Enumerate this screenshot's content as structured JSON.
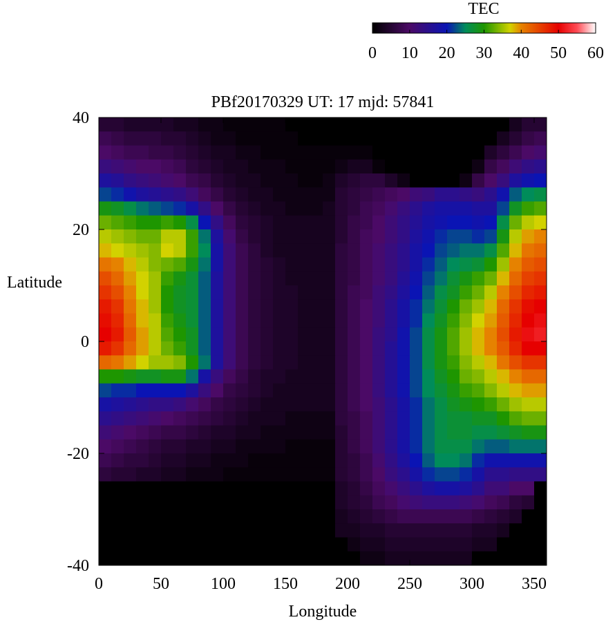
{
  "chart_data": {
    "type": "heatmap",
    "title": "PBf20170329  UT: 17  mjd: 57841",
    "xlabel": "Longitude",
    "ylabel": "Latitude",
    "xlim": [
      0,
      360
    ],
    "ylim": [
      -40,
      40
    ],
    "x_ticks": [
      "0",
      "50",
      "100",
      "150",
      "200",
      "250",
      "300",
      "350"
    ],
    "y_ticks": [
      "40",
      "20",
      "0",
      "-20",
      "-40"
    ],
    "colorbar": {
      "label": "TEC",
      "range": [
        0,
        60
      ],
      "ticks": [
        "0",
        "10",
        "20",
        "30",
        "40",
        "50",
        "60"
      ],
      "stops": [
        {
          "v": 0,
          "color": "#000000"
        },
        {
          "v": 10,
          "color": "#4b0a66"
        },
        {
          "v": 20,
          "color": "#0a14b4"
        },
        {
          "v": 25,
          "color": "#008c5a"
        },
        {
          "v": 30,
          "color": "#1e9600"
        },
        {
          "v": 37,
          "color": "#d2d200"
        },
        {
          "v": 40,
          "color": "#e68200"
        },
        {
          "v": 50,
          "color": "#e60000"
        },
        {
          "v": 55,
          "color": "#ff4b55"
        },
        {
          "v": 60,
          "color": "#ffffff"
        }
      ]
    },
    "grid_resolution": {
      "lon_step": 10,
      "lat_step": 2.5
    },
    "sampled_values": {
      "lon": [
        5,
        15,
        25,
        35,
        45,
        55,
        65,
        75,
        85,
        95,
        105,
        115,
        125,
        135,
        145,
        155,
        165,
        175,
        185,
        195,
        205,
        215,
        225,
        235,
        245,
        255,
        265,
        275,
        285,
        295,
        305,
        315,
        325,
        335,
        345,
        355
      ],
      "lat": [
        38.75,
        36.25,
        33.75,
        31.25,
        28.75,
        26.25,
        23.75,
        21.25,
        18.75,
        16.25,
        13.75,
        11.25,
        8.75,
        6.25,
        3.75,
        1.25,
        -1.25,
        -3.75,
        -6.25,
        -8.75,
        -11.25,
        -13.75,
        -16.25,
        -18.75,
        -21.25,
        -23.75,
        -26.25,
        -28.75,
        -31.25,
        -33.75,
        -36.25,
        -38.75
      ],
      "tec": [
        [
          5,
          5,
          4,
          4,
          4,
          4,
          3,
          3,
          2,
          2,
          1,
          1,
          1,
          1,
          1,
          0,
          0,
          0,
          0,
          0,
          0,
          0,
          0,
          0,
          0,
          0,
          0,
          0,
          0,
          0,
          0,
          0,
          0,
          3,
          5,
          5
        ],
        [
          8,
          7,
          6,
          6,
          6,
          5,
          5,
          4,
          3,
          2,
          2,
          1,
          1,
          1,
          1,
          1,
          0,
          0,
          0,
          0,
          0,
          0,
          0,
          0,
          0,
          0,
          0,
          0,
          0,
          0,
          0,
          0,
          3,
          5,
          7,
          8
        ],
        [
          10,
          9,
          8,
          8,
          7,
          7,
          6,
          5,
          4,
          3,
          3,
          2,
          2,
          1,
          1,
          1,
          1,
          1,
          1,
          1,
          1,
          1,
          0,
          0,
          0,
          0,
          0,
          0,
          0,
          0,
          0,
          4,
          6,
          8,
          10,
          11
        ],
        [
          13,
          12,
          11,
          10,
          10,
          9,
          8,
          6,
          5,
          4,
          3,
          3,
          2,
          2,
          2,
          1,
          1,
          1,
          1,
          2,
          3,
          3,
          1,
          0,
          0,
          0,
          0,
          0,
          0,
          0,
          2,
          7,
          9,
          12,
          14,
          15
        ],
        [
          17,
          16,
          14,
          13,
          12,
          11,
          10,
          8,
          7,
          5,
          4,
          3,
          3,
          2,
          2,
          2,
          1,
          1,
          2,
          4,
          5,
          6,
          6,
          4,
          2,
          0,
          0,
          0,
          0,
          2,
          7,
          10,
          13,
          17,
          19,
          20
        ],
        [
          22,
          21,
          19,
          17,
          16,
          15,
          14,
          12,
          9,
          7,
          5,
          4,
          3,
          3,
          2,
          2,
          2,
          2,
          2,
          5,
          6,
          7,
          8,
          9,
          10,
          12,
          13,
          15,
          15,
          14,
          13,
          15,
          19,
          23,
          25,
          26
        ],
        [
          29,
          28,
          26,
          24,
          23,
          22,
          21,
          18,
          14,
          10,
          7,
          5,
          4,
          3,
          3,
          2,
          2,
          2,
          3,
          5,
          6,
          8,
          9,
          11,
          13,
          15,
          17,
          18,
          18,
          18,
          17,
          17,
          22,
          28,
          31,
          32
        ],
        [
          33,
          32,
          31,
          30,
          30,
          31,
          30,
          26,
          20,
          14,
          9,
          6,
          5,
          4,
          3,
          3,
          3,
          3,
          3,
          5,
          7,
          8,
          10,
          12,
          14,
          16,
          18,
          19,
          20,
          20,
          19,
          20,
          26,
          33,
          36,
          37
        ],
        [
          36,
          35,
          34,
          33,
          33,
          36,
          36,
          31,
          24,
          17,
          11,
          7,
          5,
          4,
          3,
          3,
          3,
          3,
          3,
          5,
          7,
          9,
          10,
          12,
          14,
          17,
          19,
          21,
          22,
          22,
          21,
          22,
          29,
          36,
          39,
          40
        ],
        [
          38,
          37,
          36,
          35,
          34,
          37,
          36,
          31,
          25,
          18,
          12,
          8,
          6,
          4,
          3,
          3,
          3,
          3,
          3,
          6,
          7,
          9,
          11,
          13,
          15,
          18,
          20,
          22,
          23,
          24,
          24,
          26,
          32,
          38,
          41,
          42
        ],
        [
          41,
          40,
          38,
          36,
          34,
          33,
          32,
          29,
          24,
          18,
          12,
          8,
          6,
          5,
          4,
          3,
          3,
          3,
          3,
          6,
          7,
          9,
          11,
          13,
          15,
          18,
          21,
          23,
          25,
          26,
          27,
          30,
          35,
          40,
          43,
          44
        ],
        [
          44,
          42,
          39,
          37,
          35,
          31,
          29,
          27,
          23,
          17,
          12,
          8,
          6,
          5,
          4,
          3,
          3,
          3,
          3,
          6,
          7,
          9,
          11,
          13,
          16,
          19,
          22,
          24,
          27,
          29,
          31,
          33,
          38,
          42,
          45,
          46
        ],
        [
          46,
          44,
          40,
          37,
          35,
          30,
          28,
          27,
          23,
          17,
          12,
          8,
          6,
          5,
          4,
          4,
          3,
          3,
          3,
          6,
          8,
          9,
          12,
          14,
          17,
          20,
          23,
          26,
          28,
          31,
          33,
          36,
          40,
          44,
          47,
          48
        ],
        [
          48,
          46,
          41,
          38,
          35,
          30,
          28,
          27,
          23,
          17,
          12,
          8,
          6,
          5,
          4,
          4,
          3,
          3,
          3,
          6,
          8,
          10,
          12,
          15,
          18,
          21,
          24,
          27,
          30,
          33,
          35,
          38,
          42,
          46,
          49,
          50
        ],
        [
          49,
          47,
          42,
          38,
          36,
          31,
          29,
          27,
          23,
          17,
          12,
          8,
          6,
          5,
          4,
          4,
          3,
          3,
          3,
          6,
          8,
          10,
          12,
          15,
          18,
          21,
          25,
          28,
          31,
          34,
          37,
          39,
          43,
          47,
          50,
          51
        ],
        [
          50,
          48,
          43,
          39,
          36,
          32,
          30,
          28,
          23,
          17,
          12,
          8,
          6,
          5,
          4,
          4,
          3,
          3,
          3,
          6,
          8,
          10,
          13,
          15,
          19,
          22,
          26,
          29,
          32,
          35,
          38,
          40,
          44,
          48,
          51,
          52
        ],
        [
          48,
          46,
          42,
          39,
          36,
          33,
          31,
          28,
          23,
          17,
          12,
          8,
          6,
          5,
          4,
          4,
          3,
          3,
          3,
          6,
          8,
          10,
          13,
          16,
          19,
          22,
          26,
          29,
          32,
          35,
          38,
          40,
          43,
          47,
          50,
          50
        ],
        [
          42,
          41,
          39,
          37,
          35,
          35,
          34,
          30,
          24,
          17,
          12,
          8,
          6,
          5,
          4,
          4,
          3,
          3,
          3,
          6,
          8,
          10,
          13,
          16,
          19,
          22,
          26,
          29,
          31,
          34,
          36,
          38,
          41,
          44,
          46,
          46
        ],
        [
          30,
          30,
          29,
          28,
          28,
          29,
          29,
          24,
          18,
          13,
          9,
          7,
          5,
          4,
          4,
          3,
          3,
          3,
          3,
          6,
          8,
          10,
          13,
          16,
          19,
          22,
          25,
          28,
          30,
          33,
          34,
          36,
          38,
          40,
          42,
          42
        ],
        [
          22,
          21,
          21,
          20,
          20,
          20,
          20,
          17,
          13,
          10,
          7,
          6,
          5,
          4,
          3,
          3,
          3,
          3,
          3,
          6,
          8,
          10,
          13,
          16,
          19,
          22,
          25,
          27,
          29,
          31,
          32,
          34,
          36,
          38,
          39,
          39
        ],
        [
          18,
          17,
          16,
          15,
          14,
          14,
          13,
          11,
          9,
          7,
          6,
          5,
          4,
          3,
          3,
          3,
          3,
          3,
          3,
          6,
          8,
          10,
          12,
          15,
          18,
          21,
          24,
          26,
          28,
          29,
          30,
          31,
          33,
          35,
          36,
          36
        ],
        [
          15,
          14,
          13,
          12,
          11,
          10,
          9,
          8,
          7,
          6,
          5,
          4,
          3,
          3,
          3,
          2,
          2,
          2,
          2,
          6,
          7,
          9,
          12,
          15,
          18,
          21,
          24,
          26,
          27,
          27,
          28,
          28,
          30,
          32,
          33,
          33
        ],
        [
          12,
          11,
          10,
          9,
          8,
          7,
          7,
          6,
          5,
          4,
          4,
          3,
          3,
          2,
          2,
          2,
          2,
          2,
          2,
          5,
          7,
          9,
          12,
          15,
          18,
          21,
          24,
          26,
          27,
          27,
          26,
          26,
          27,
          28,
          29,
          29
        ],
        [
          10,
          9,
          8,
          7,
          6,
          5,
          5,
          4,
          4,
          3,
          3,
          2,
          2,
          2,
          2,
          1,
          1,
          1,
          1,
          5,
          7,
          9,
          12,
          15,
          18,
          21,
          24,
          26,
          26,
          26,
          24,
          23,
          23,
          24,
          24,
          24
        ],
        [
          8,
          7,
          6,
          6,
          5,
          4,
          4,
          3,
          3,
          2,
          2,
          2,
          1,
          1,
          1,
          1,
          1,
          1,
          1,
          5,
          6,
          8,
          11,
          14,
          17,
          20,
          23,
          25,
          25,
          24,
          21,
          19,
          19,
          19,
          19,
          19
        ],
        [
          6,
          5,
          5,
          4,
          4,
          3,
          3,
          2,
          2,
          2,
          1,
          1,
          1,
          1,
          1,
          1,
          1,
          1,
          1,
          5,
          6,
          8,
          10,
          13,
          15,
          18,
          21,
          22,
          22,
          21,
          18,
          15,
          15,
          14,
          14,
          14
        ],
        [
          0,
          0,
          0,
          0,
          0,
          0,
          0,
          0,
          0,
          0,
          0,
          0,
          0,
          0,
          0,
          0,
          0,
          0,
          0,
          4,
          5,
          7,
          9,
          11,
          13,
          15,
          17,
          18,
          18,
          17,
          15,
          12,
          12,
          10,
          10,
          0
        ],
        [
          0,
          0,
          0,
          0,
          0,
          0,
          0,
          0,
          0,
          0,
          0,
          0,
          0,
          0,
          0,
          0,
          0,
          0,
          0,
          4,
          5,
          6,
          8,
          9,
          11,
          12,
          13,
          13,
          13,
          12,
          11,
          9,
          8,
          6,
          5,
          0
        ],
        [
          0,
          0,
          0,
          0,
          0,
          0,
          0,
          0,
          0,
          0,
          0,
          0,
          0,
          0,
          0,
          0,
          0,
          0,
          0,
          3,
          4,
          5,
          6,
          7,
          8,
          8,
          8,
          8,
          8,
          8,
          7,
          6,
          5,
          4,
          0,
          0
        ],
        [
          0,
          0,
          0,
          0,
          0,
          0,
          0,
          0,
          0,
          0,
          0,
          0,
          0,
          0,
          0,
          0,
          0,
          0,
          0,
          3,
          3,
          4,
          4,
          5,
          5,
          5,
          5,
          5,
          5,
          5,
          4,
          4,
          3,
          0,
          0,
          0
        ],
        [
          0,
          0,
          0,
          0,
          0,
          0,
          0,
          0,
          0,
          0,
          0,
          0,
          0,
          0,
          0,
          0,
          0,
          0,
          0,
          0,
          2,
          3,
          3,
          4,
          4,
          4,
          4,
          4,
          4,
          4,
          3,
          3,
          0,
          0,
          0,
          0
        ],
        [
          0,
          0,
          0,
          0,
          0,
          0,
          0,
          0,
          0,
          0,
          0,
          0,
          0,
          0,
          0,
          0,
          0,
          0,
          0,
          0,
          0,
          2,
          2,
          3,
          3,
          3,
          3,
          3,
          3,
          3,
          0,
          0,
          0,
          0,
          0,
          0
        ]
      ]
    }
  }
}
